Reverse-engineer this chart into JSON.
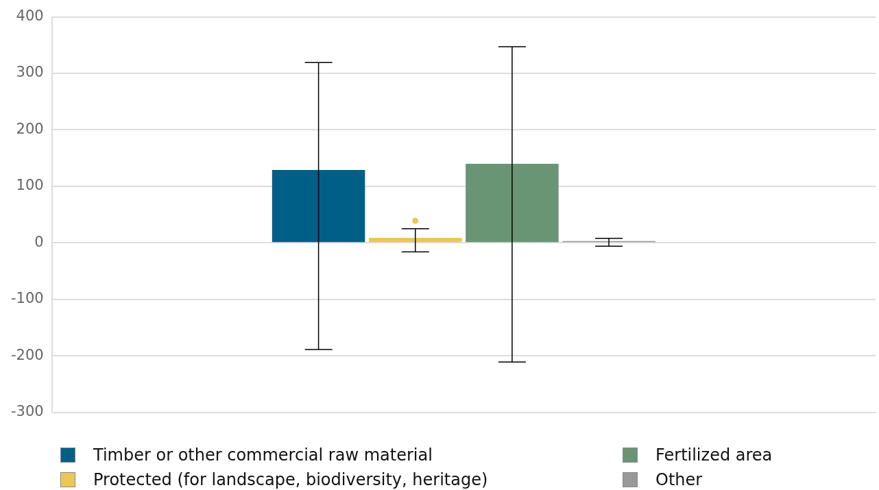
{
  "chart_data": {
    "type": "bar",
    "categories": [
      null
    ],
    "series": [
      {
        "name": "Timber or other commercial raw material",
        "color": "#005f87",
        "values": [
          129
        ],
        "errors": [
          [
            -189,
            319
          ]
        ]
      },
      {
        "name": "Protected (for landscape, biodiversity, heritage)",
        "color": "#ebc855",
        "values": [
          9
        ],
        "errors": [
          [
            -16,
            25
          ]
        ]
      },
      {
        "name": "Fertilized area",
        "color": "#6a9574",
        "values": [
          140
        ],
        "errors": [
          [
            -211,
            347
          ]
        ]
      },
      {
        "name": "Other",
        "color": "#999999",
        "values": [
          3
        ],
        "errors": [
          [
            -6,
            8
          ]
        ]
      },
      {
        "type": "scatter",
        "color": "#ebc855",
        "values": [
          39
        ]
      }
    ],
    "ylim": [
      -300,
      400
    ],
    "yticks": [
      -300,
      -200,
      -100,
      0,
      100,
      200,
      300,
      400
    ],
    "grid": "y",
    "legend": "bottom",
    "marker": "circle"
  }
}
